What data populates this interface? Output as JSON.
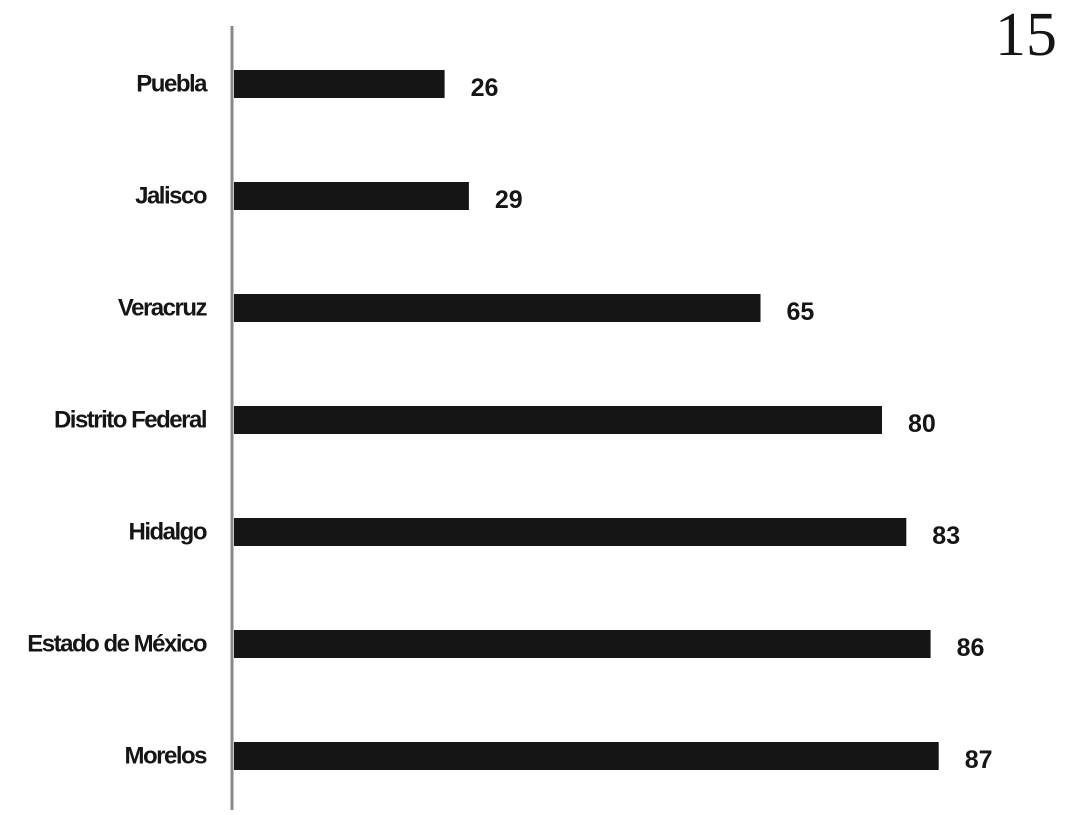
{
  "page_number": "15",
  "colors": {
    "bar": "#151515",
    "axis": "#8a8a8a",
    "text": "#151515",
    "background": "#ffffff"
  },
  "chart_data": {
    "type": "bar",
    "orientation": "horizontal",
    "title": "",
    "xlabel": "",
    "ylabel": "",
    "categories": [
      "Puebla",
      "Jalisco",
      "Veracruz",
      "Distrito Federal",
      "Hidalgo",
      "Estado de México",
      "Morelos"
    ],
    "values": [
      26,
      29,
      65,
      80,
      83,
      86,
      87
    ],
    "data_labels": [
      "26",
      "29",
      "65",
      "80",
      "83",
      "86",
      "87"
    ],
    "xlim": [
      0,
      100
    ],
    "grid": false,
    "legend": "none"
  }
}
